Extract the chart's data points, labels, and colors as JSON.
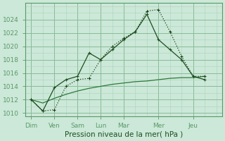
{
  "background_color": "#cce8d8",
  "grid_color_major": "#88bb99",
  "grid_color_minor": "#aad4bb",
  "xlabel": "Pression niveau de la mer( hPa )",
  "xlabel_fontsize": 7.5,
  "tick_fontsize": 6.5,
  "ylim": [
    1009.5,
    1026.5
  ],
  "yticks": [
    1010,
    1012,
    1014,
    1016,
    1018,
    1020,
    1022,
    1024
  ],
  "days": [
    "Dim",
    "Ven",
    "Sam",
    "Lun",
    "Mar",
    "Mer",
    "Jeu"
  ],
  "day_x": [
    0,
    2,
    4,
    6,
    8,
    11,
    14
  ],
  "xlim": [
    -0.5,
    16.5
  ],
  "line1_x": [
    0,
    1,
    2,
    3,
    4,
    5,
    6,
    7,
    8,
    9,
    10,
    11,
    12,
    13,
    14,
    15
  ],
  "line1_y": [
    1012.0,
    1010.3,
    1010.5,
    1014.0,
    1015.0,
    1015.2,
    1018.0,
    1020.0,
    1021.2,
    1022.2,
    1025.3,
    1025.5,
    1022.2,
    1018.5,
    1015.5,
    1015.5
  ],
  "line2_x": [
    0,
    1,
    2,
    3,
    4,
    5,
    6,
    7,
    8,
    9,
    10,
    11,
    12,
    13,
    14,
    15
  ],
  "line2_y": [
    1012.0,
    1010.3,
    1013.8,
    1015.0,
    1015.5,
    1019.0,
    1018.0,
    1019.5,
    1021.0,
    1022.2,
    1024.8,
    1021.0,
    1019.5,
    1018.0,
    1015.5,
    1015.0
  ],
  "line3_x": [
    0,
    1,
    2,
    3,
    4,
    5,
    6,
    7,
    8,
    9,
    10,
    11,
    12,
    13,
    14,
    15
  ],
  "line3_y": [
    1012.0,
    1011.5,
    1012.2,
    1012.8,
    1013.3,
    1013.7,
    1014.0,
    1014.3,
    1014.5,
    1014.7,
    1014.8,
    1015.0,
    1015.2,
    1015.3,
    1015.3,
    1015.5
  ],
  "line1_color": "#1a5020",
  "line2_color": "#1a5020",
  "line3_color": "#2a7030"
}
